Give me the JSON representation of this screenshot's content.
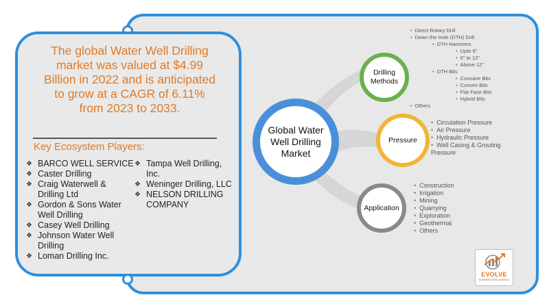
{
  "headline": [
    "The global Water Well Drilling",
    "market was valued at $4.99",
    "Billion in 2022 and is anticipated",
    "to grow at a CAGR of 6.11%",
    "from 2023 to 2033."
  ],
  "players_title": "Key Ecosystem Players:",
  "players_col1": [
    "BARCO WELL SERVICE",
    "Caster Drilling",
    "Craig Waterwell & Drilling Ltd",
    "Gordon & Sons Water Well Drilling",
    "Casey Well Drilling",
    "Johnson Water Well Drilling",
    "Loman Drilling Inc."
  ],
  "players_col2": [
    "Tampa Well Drilling, Inc.",
    "Weninger Drilling, LLC",
    "NELSON DRILLING COMPANY"
  ],
  "bullet_glyph": "❖",
  "hub_label": "Global Water Well Drilling Market",
  "nodes": {
    "drilling": "Drilling Methods",
    "pressure": "Pressure",
    "application": "Application"
  },
  "drilling_items": {
    "top": [
      "Direct Rotary Drill",
      "Down the Hole (DTH) Drill"
    ],
    "dth_hammers": "DTH Hammers",
    "hammer_sizes": [
      "Upto 6\"",
      "6\" to 12\"",
      "Above 12\""
    ],
    "dth_bits": "DTH Bits",
    "bit_types": [
      "Concave Bits",
      "Convex Bits",
      "Flat Face Bits",
      "Hybrid Bits"
    ],
    "others": "Others"
  },
  "pressure_items": [
    "Circulation Pressure",
    "Air Pressure",
    "Hydraulic Pressure",
    "Well Casing & Grouting Pressure"
  ],
  "application_items": [
    "Construction",
    "Irrigation",
    "Mining",
    "Quarrying",
    "Exploration",
    "Geothermal",
    "Others"
  ],
  "logo": {
    "name": "EVOLVE",
    "tagline": "BUSINESS INTELLIGENCE"
  },
  "colors": {
    "frame": "#2f8fdc",
    "accent_orange": "#e07a25",
    "drilling": "#6ab04c",
    "pressure": "#f2b535",
    "application": "#8a8a8a",
    "hub": "#4a90d9"
  }
}
